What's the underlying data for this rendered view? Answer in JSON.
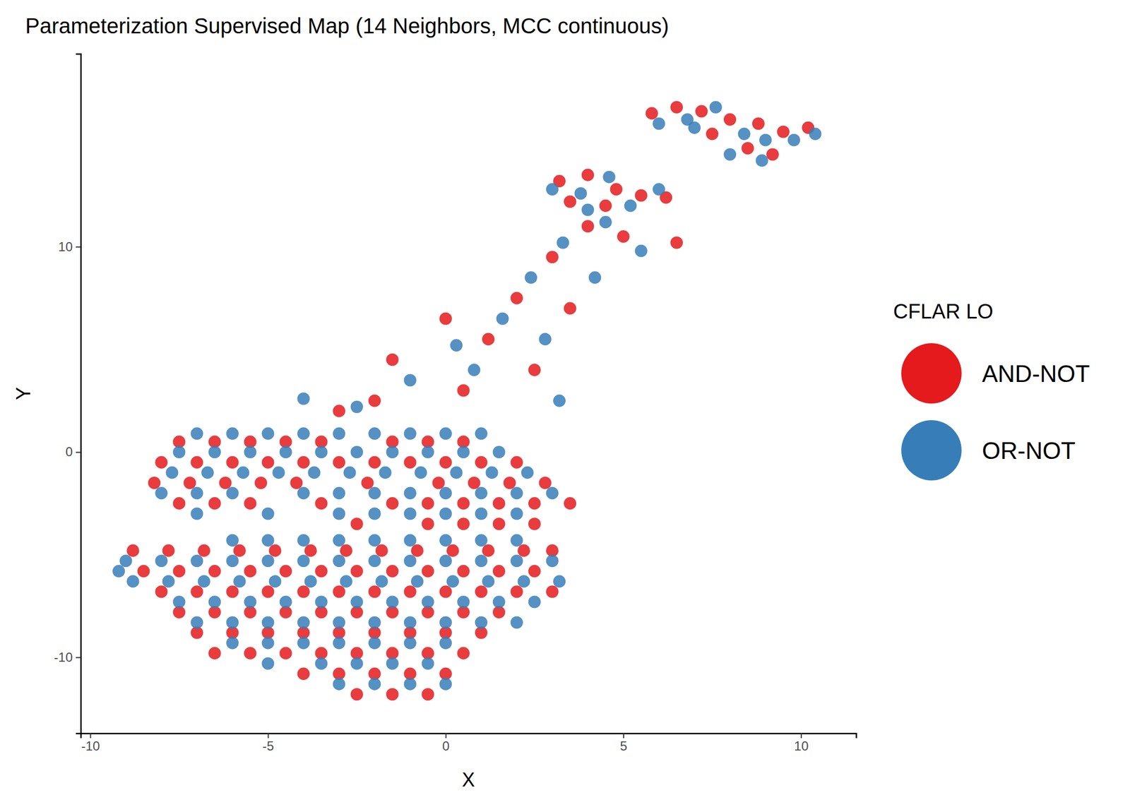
{
  "chart_data": {
    "type": "scatter",
    "title": "Parameterization Supervised Map (14 Neighbors, MCC continuous)",
    "x_label": "X",
    "y_label": "Y",
    "legend_title": "CFLAR LO",
    "legend": "right",
    "xlim": [
      -10.27,
      11.55
    ],
    "ylim": [
      -13.7,
      19.4
    ],
    "xticks": [
      -10,
      -5,
      0,
      5,
      10
    ],
    "yticks": [
      -10,
      0,
      10
    ],
    "series": [
      {
        "name": "AND-NOT",
        "color": "#E41A1C",
        "marker": "circle",
        "x": [
          -7.5,
          -6.5,
          -5.5,
          -4.5,
          -3.5,
          -1.5,
          -0.5,
          0.5,
          -8,
          -7,
          -6,
          -5,
          -4,
          -3,
          -2,
          -1,
          0,
          1,
          2,
          -8.2,
          -7.2,
          -6.2,
          -5.2,
          -4.2,
          -2.2,
          -0.2,
          0.8,
          1.8,
          2.8,
          -7.5,
          -6.5,
          -5.5,
          -3.5,
          -1.5,
          -0.5,
          0.5,
          1.5,
          2.5,
          3.5,
          -2.5,
          -0.5,
          0.5,
          1.5,
          2.5,
          -8.8,
          -7.8,
          -6.8,
          -5.8,
          -4.8,
          -3.8,
          -2.8,
          -1.8,
          -0.8,
          0.2,
          1.2,
          2.2,
          3,
          -8.5,
          -7.5,
          -6.5,
          -5.5,
          -4.5,
          -3.5,
          -2.5,
          -1.5,
          -0.5,
          0.5,
          1.5,
          2.5,
          -8,
          -7,
          -6,
          -5,
          -4,
          -3,
          -2,
          -1,
          0,
          1,
          2,
          3,
          -7.5,
          -6.5,
          -5.5,
          -4.5,
          -3.5,
          -2.5,
          -1.5,
          -0.5,
          0.5,
          1.5,
          -7,
          -6,
          -5,
          -4,
          -3,
          -2,
          -1,
          0,
          1,
          -6.5,
          -5.5,
          -4.5,
          -3.5,
          -2.5,
          -1.5,
          -0.5,
          0.5,
          -4,
          -3,
          -2,
          -1,
          0,
          -2.5,
          -1.5,
          -0.5,
          5.8,
          6.5,
          7.2,
          8,
          8.8,
          9.5,
          10.2,
          8.5,
          9.2,
          7.5,
          3.2,
          4,
          4.8,
          3.5,
          4.5,
          5.5,
          6.2,
          0.5,
          1.2,
          2,
          3,
          4,
          -1.5,
          0,
          2.5,
          3.5,
          5,
          -3,
          -2,
          6.5
        ],
        "values": [
          0.5,
          0.5,
          0.5,
          0.5,
          0.5,
          0.5,
          0.5,
          0.5,
          -0.5,
          -0.5,
          -0.5,
          -0.5,
          -0.5,
          -0.5,
          -0.5,
          -0.5,
          -0.5,
          -0.5,
          -0.5,
          -1.5,
          -1.5,
          -1.5,
          -1.5,
          -1.5,
          -1.5,
          -1.5,
          -1.5,
          -1.5,
          -1.5,
          -2.5,
          -2.5,
          -2.5,
          -2.5,
          -2.5,
          -2.5,
          -2.5,
          -2.5,
          -2.5,
          -2.5,
          -3.5,
          -3.5,
          -3.5,
          -3.5,
          -3.5,
          -4.8,
          -4.8,
          -4.8,
          -4.8,
          -4.8,
          -4.8,
          -4.8,
          -4.8,
          -4.8,
          -4.8,
          -4.8,
          -4.8,
          -4.8,
          -5.8,
          -5.8,
          -5.8,
          -5.8,
          -5.8,
          -5.8,
          -5.8,
          -5.8,
          -5.8,
          -5.8,
          -5.8,
          -5.8,
          -6.8,
          -6.8,
          -6.8,
          -6.8,
          -6.8,
          -6.8,
          -6.8,
          -6.8,
          -6.8,
          -6.8,
          -6.8,
          -6.8,
          -7.8,
          -7.8,
          -7.8,
          -7.8,
          -7.8,
          -7.8,
          -7.8,
          -7.8,
          -7.8,
          -7.8,
          -8.8,
          -8.8,
          -8.8,
          -8.8,
          -8.8,
          -8.8,
          -8.8,
          -8.8,
          -8.8,
          -9.8,
          -9.8,
          -9.8,
          -9.8,
          -9.8,
          -9.8,
          -9.8,
          -9.8,
          -10.8,
          -10.8,
          -10.8,
          -10.8,
          -10.8,
          -11.8,
          -11.8,
          -11.8,
          16.5,
          16.8,
          16.6,
          16.2,
          16,
          15.6,
          15.8,
          14.8,
          14.5,
          15.5,
          13.2,
          13.5,
          12.8,
          12.2,
          12,
          12.5,
          12.4,
          3,
          5.5,
          7.5,
          9.5,
          11,
          4.5,
          6.5,
          4,
          7,
          10.5,
          2,
          2.5,
          10.2
        ]
      },
      {
        "name": "OR-NOT",
        "color": "#377EB8",
        "marker": "circle",
        "x": [
          -7,
          -6,
          -5,
          -4,
          -3,
          -2,
          -1,
          0,
          1,
          -7.5,
          -6.5,
          -5.5,
          -4.5,
          -3.5,
          -2.5,
          -1.5,
          -0.5,
          0.5,
          1.5,
          -7.7,
          -6.7,
          -5.7,
          -4.7,
          -3.7,
          -2.7,
          -1.7,
          -0.7,
          0.3,
          1.3,
          2.3,
          -8,
          -7,
          -6,
          -4,
          -3,
          -2,
          -1,
          0,
          1,
          2,
          3,
          -7,
          -5,
          -3,
          -2,
          -1,
          0,
          1,
          2,
          -6,
          -5,
          -4,
          -3,
          -2,
          -1,
          0,
          1,
          2,
          -9,
          -8,
          -7,
          -6,
          -5,
          -4,
          -3,
          -2,
          -1,
          0,
          1,
          2,
          3,
          -8.8,
          -7.8,
          -6.8,
          -5.8,
          -4.8,
          -3.8,
          -2.8,
          -1.8,
          -0.8,
          0.2,
          1.2,
          2.2,
          3.2,
          -7.5,
          -6.5,
          -5.5,
          -4.5,
          -3.5,
          -2.5,
          -1.5,
          -0.5,
          0.5,
          1.5,
          2.5,
          -7,
          -6,
          -5,
          -4,
          -3,
          -2,
          -1,
          0,
          1,
          2,
          -6,
          -5,
          -4,
          -3,
          -2,
          -1,
          0,
          -5,
          -3.5,
          -2.5,
          -1.5,
          -0.5,
          -3,
          -2,
          -1,
          0,
          6,
          6.8,
          7.6,
          8.4,
          9,
          9.8,
          10.4,
          8,
          8.9,
          7,
          3,
          3.8,
          4.6,
          5.2,
          4,
          6,
          0.8,
          1.6,
          2.4,
          3.3,
          4.5,
          -1,
          0.3,
          2.8,
          3.2,
          4.2,
          5.5,
          -2.5,
          -4,
          -9.2
        ],
        "values": [
          0.9,
          0.9,
          0.9,
          0.9,
          0.9,
          0.9,
          0.9,
          0.9,
          0.9,
          0,
          0,
          0,
          0,
          0,
          0,
          0,
          0,
          0,
          0,
          -1,
          -1,
          -1,
          -1,
          -1,
          -1,
          -1,
          -1,
          -1,
          -1,
          -1,
          -2,
          -2,
          -2,
          -2,
          -2,
          -2,
          -2,
          -2,
          -2,
          -2,
          -2,
          -3,
          -3,
          -3,
          -3,
          -3,
          -3,
          -3,
          -3,
          -4.3,
          -4.3,
          -4.3,
          -4.3,
          -4.3,
          -4.3,
          -4.3,
          -4.3,
          -4.3,
          -5.3,
          -5.3,
          -5.3,
          -5.3,
          -5.3,
          -5.3,
          -5.3,
          -5.3,
          -5.3,
          -5.3,
          -5.3,
          -5.3,
          -5.3,
          -6.3,
          -6.3,
          -6.3,
          -6.3,
          -6.3,
          -6.3,
          -6.3,
          -6.3,
          -6.3,
          -6.3,
          -6.3,
          -6.3,
          -6.3,
          -7.3,
          -7.3,
          -7.3,
          -7.3,
          -7.3,
          -7.3,
          -7.3,
          -7.3,
          -7.3,
          -7.3,
          -7.3,
          -8.3,
          -8.3,
          -8.3,
          -8.3,
          -8.3,
          -8.3,
          -8.3,
          -8.3,
          -8.3,
          -8.3,
          -9.3,
          -9.3,
          -9.3,
          -9.3,
          -9.3,
          -9.3,
          -9.3,
          -10.3,
          -10.3,
          -10.3,
          -10.3,
          -10.3,
          -11.3,
          -11.3,
          -11.3,
          -11.3,
          16,
          16.2,
          16.8,
          15.5,
          15.2,
          15.2,
          15.5,
          14.5,
          14.2,
          15.8,
          12.8,
          12.6,
          13.4,
          12,
          11.8,
          12.8,
          4,
          6.5,
          8.5,
          10.2,
          11.2,
          3.5,
          5.2,
          5.5,
          2.5,
          8.5,
          9.8,
          2.2,
          2.6,
          -5.8
        ]
      }
    ]
  }
}
